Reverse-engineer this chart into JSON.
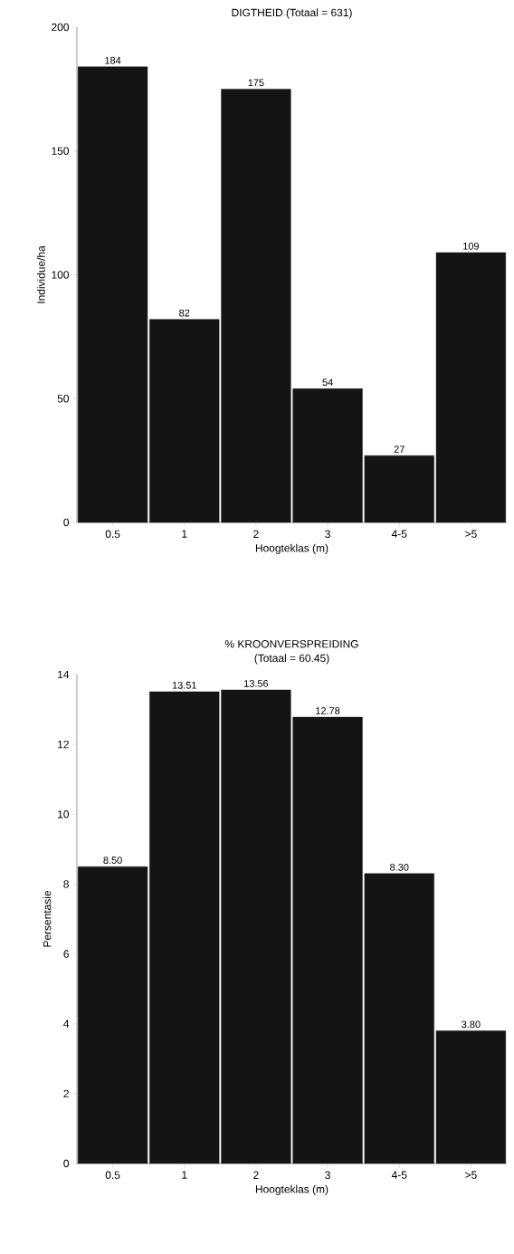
{
  "chart_data": [
    {
      "type": "bar",
      "title": "DIGTHEID (Totaal = 631)",
      "xlabel": "Hoogteklas (m)",
      "ylabel": "Individue/ha",
      "categories": [
        "0.5",
        "1",
        "2",
        "3",
        "4-5",
        ">5"
      ],
      "values": [
        184,
        82,
        175,
        54,
        27,
        109
      ],
      "color": "#141414",
      "ylim": [
        0,
        200
      ],
      "yticks": [
        0,
        50,
        100,
        150,
        200
      ],
      "data_labels": true
    },
    {
      "type": "bar",
      "title": "% KROONVERSPREIDING",
      "subtitle": "(Totaal = 60.45)",
      "xlabel": "Hoogteklas (m)",
      "ylabel": "Persentasie",
      "categories": [
        "0.5",
        "1",
        "2",
        "3",
        "4-5",
        ">5"
      ],
      "values": [
        8.5,
        13.51,
        13.56,
        12.78,
        8.3,
        3.8
      ],
      "value_labels": [
        "8.50",
        "13.51",
        "13.56",
        "12.78",
        "8.30",
        "3.80"
      ],
      "color": "#141414",
      "ylim": [
        0,
        14
      ],
      "yticks": [
        0,
        2,
        4,
        6,
        8,
        10,
        12,
        14
      ]
    }
  ]
}
